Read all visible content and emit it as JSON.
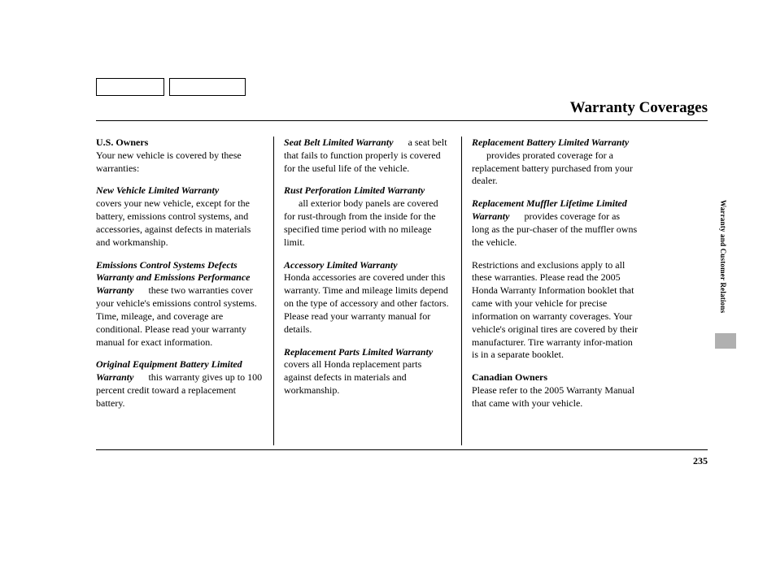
{
  "title": "Warranty Coverages",
  "sideLabel": "Warranty and Customer Relations",
  "pageNum": "235",
  "col1": {
    "h1": "U.S. Owners",
    "p1": "Your new vehicle is covered by these warranties:",
    "w1": "New Vehicle Limited Warranty",
    "w1t": "covers your new vehicle, except for the battery, emissions control systems, and accessories, against defects in materials and workmanship.",
    "w2a": "Emissions Control Systems Defects Warranty and Emissions Performance Warranty",
    "w2t": "these two warranties cover your vehicle's emissions control systems. Time, mileage, and coverage are conditional. Please read your warranty manual for exact information.",
    "w3a": "Original Equipment Battery Limited Warranty",
    "w3t": "this warranty gives up to 100 percent credit toward a replacement battery."
  },
  "col2": {
    "w1": "Seat Belt Limited Warranty",
    "w1t": "a seat belt that fails to function properly is covered for the useful life of the vehicle.",
    "w2": "Rust Perforation Limited Warranty",
    "w2t": "all exterior body panels are covered for rust-through from the inside for the specified time period with no mileage limit.",
    "w3": "Accessory Limited Warranty",
    "w3t": "Honda accessories are covered under this warranty. Time and mileage limits depend on the type of accessory and other factors. Please read your warranty manual for details.",
    "w4a": "Replacement Parts Limited Warranty",
    "w4t": "covers all Honda replacement parts against defects in materials and workmanship."
  },
  "col3": {
    "w1a": "Replacement Battery Limited Warranty",
    "w1t": "provides prorated coverage for a replacement battery purchased from your dealer.",
    "w2a": "Replacement Muffler Lifetime Limited Warranty",
    "w2t": "provides coverage for as long as the pur-chaser of the muffler owns the vehicle.",
    "p1": "Restrictions and exclusions apply to all these warranties. Please read the 2005 Honda Warranty Information booklet that came with your vehicle for precise information on warranty coverages. Your vehicle's original tires are covered by their manufacturer. Tire warranty infor-mation is in a separate booklet.",
    "h2": "Canadian Owners",
    "p2": "Please refer to the 2005 Warranty Manual that came with your vehicle."
  }
}
